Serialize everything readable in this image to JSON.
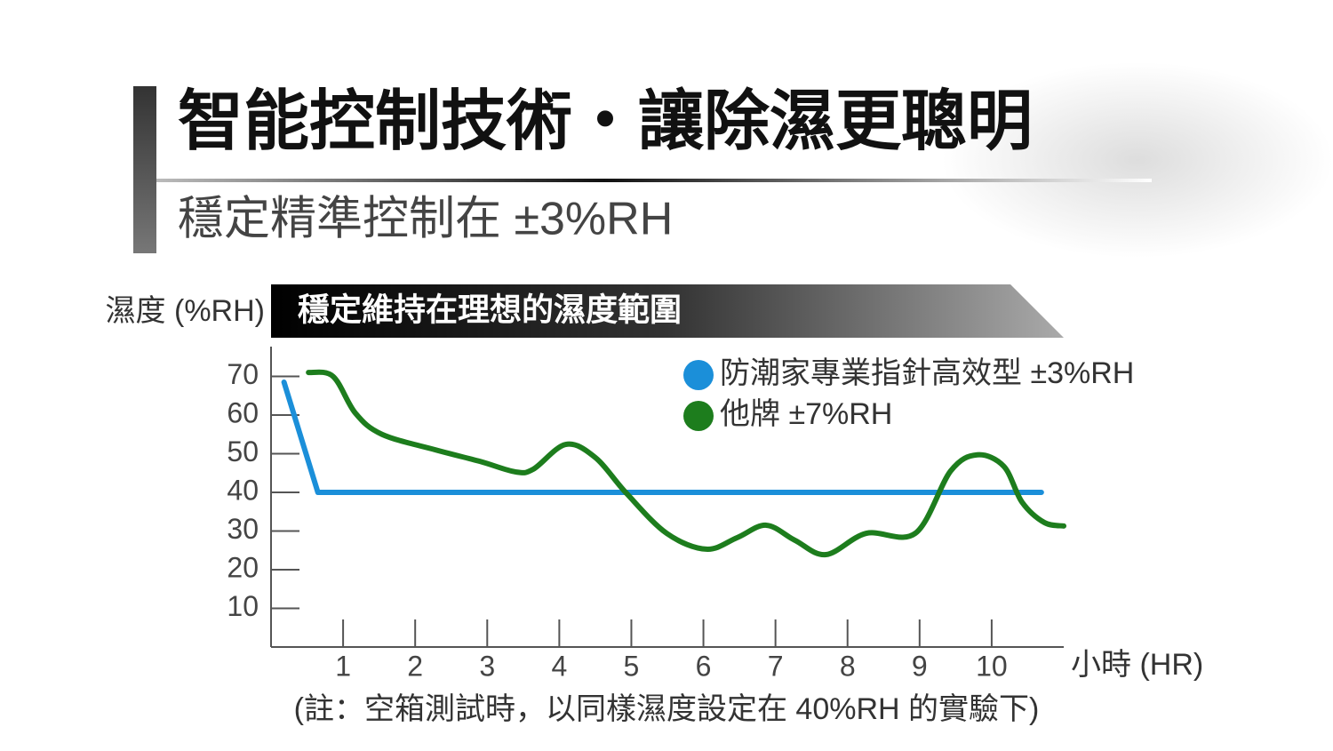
{
  "chart_data": {
    "type": "line",
    "title": "智能控制技術・讓除濕更聰明",
    "subtitle": "穩定精準控制在 ±3%RH",
    "banner": "穩定維持在理想的濕度範圍",
    "ylabel": "濕度 (%RH)",
    "xlabel": "小時 (HR)",
    "note": "(註：空箱測試時，以同樣濕度設定在 40%RH 的實驗下)",
    "xlim": [
      0,
      11
    ],
    "ylim": [
      0,
      77
    ],
    "xticks": [
      1,
      2,
      3,
      4,
      5,
      6,
      7,
      8,
      9,
      10
    ],
    "yticks": [
      10,
      20,
      30,
      40,
      50,
      60,
      70
    ],
    "series": [
      {
        "name": "防潮家專業指針高效型 ±3%RH",
        "color": "#1b8fd9",
        "x": [
          0.18,
          0.65,
          10.69
        ],
        "values": [
          68.5,
          40,
          40
        ]
      },
      {
        "name": "他牌 ±7%RH",
        "color": "#1d7d1d",
        "x": [
          0.52,
          0.86,
          1.17,
          1.54,
          2.28,
          2.9,
          3.39,
          3.64,
          4.09,
          4.5,
          4.93,
          5.49,
          6.04,
          6.47,
          6.87,
          7.27,
          7.7,
          8.26,
          8.94,
          9.43,
          9.8,
          10.17,
          10.42,
          10.73,
          11
        ],
        "values": [
          71,
          70,
          60.5,
          55,
          51,
          48,
          45.3,
          46,
          52.4,
          49,
          39.8,
          29.4,
          25.3,
          28.3,
          31.5,
          27.6,
          23.9,
          29.4,
          29.4,
          45.5,
          49.7,
          46.7,
          37.5,
          32.2,
          31.3
        ]
      }
    ]
  }
}
